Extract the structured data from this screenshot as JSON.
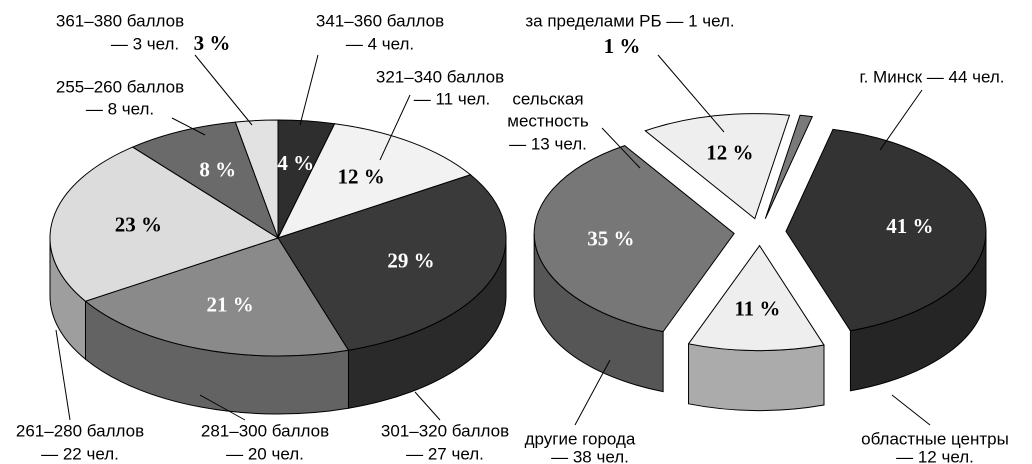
{
  "chart_data": [
    {
      "type": "pie3d",
      "categories": [
        [
          "361–380 баллов",
          "— 3 чел."
        ],
        [
          "341–360 баллов",
          "— 4 чел."
        ],
        [
          "321–340 баллов",
          "— 11 чел."
        ],
        [
          "301–320 баллов",
          "— 27 чел."
        ],
        [
          "281–300 баллов",
          "— 20 чел."
        ],
        [
          "261–280 баллов",
          "— 22 чел."
        ],
        [
          "255–260 баллов",
          "— 8 чел."
        ]
      ],
      "values": [
        3,
        4,
        12,
        29,
        21,
        23,
        8
      ],
      "value_labels": [
        "3 %",
        "4 %",
        "12 %",
        "29 %",
        "21 %",
        "23 %",
        "8 %"
      ],
      "colors": [
        "#e2e2e2",
        "#2e2e2e",
        "#f2f2f2",
        "#3a3a3a",
        "#8a8a8a",
        "#dcdcdc",
        "#6a6a6a"
      ]
    },
    {
      "type": "pie3d",
      "categories": [
        [
          "за пределами РБ — 1 чел."
        ],
        [
          "г. Минск — 44 чел."
        ],
        [
          "областные центры",
          "— 12 чел."
        ],
        [
          "другие города",
          "— 38 чел."
        ],
        [
          "сельская",
          "местность",
          "— 13 чел."
        ]
      ],
      "values": [
        1,
        41,
        11,
        35,
        12
      ],
      "value_labels": [
        "1 %",
        "41 %",
        "11 %",
        "35 %",
        "12 %"
      ],
      "colors": [
        "#7a7a7a",
        "#333333",
        "#eeeeee",
        "#777777",
        "#eeeeee"
      ]
    }
  ]
}
